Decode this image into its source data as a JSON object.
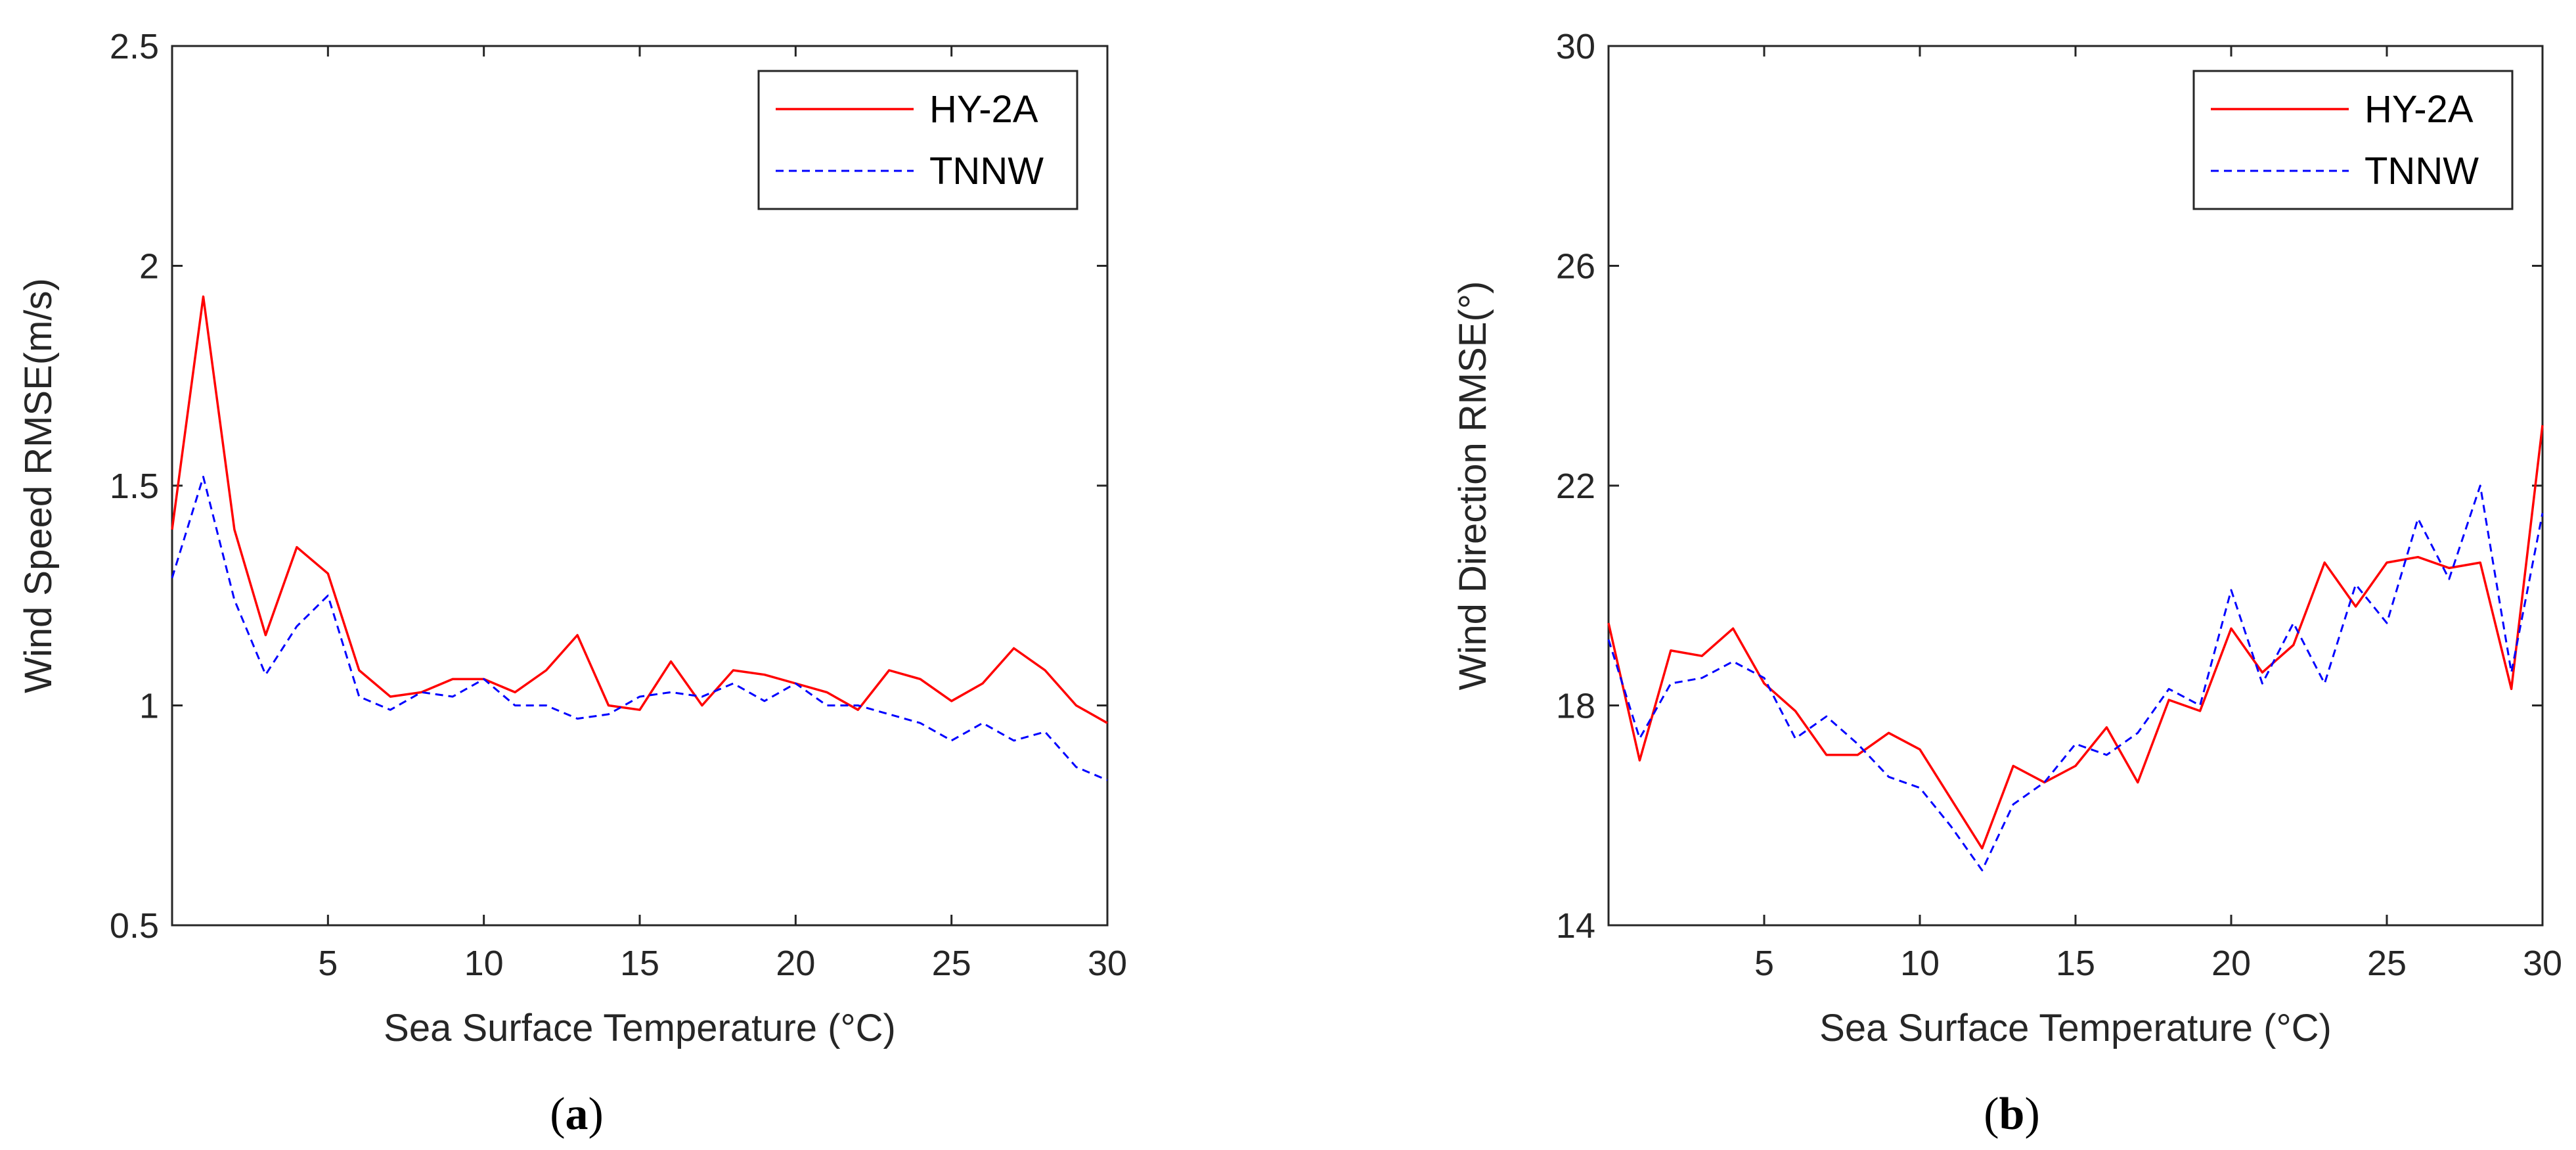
{
  "chart_data": [
    {
      "type": "line",
      "panel": "a",
      "panel_open": "(",
      "panel_close": ")",
      "title": "",
      "xlabel": "Sea Surface Temperature (°C)",
      "ylabel": "Wind Speed RMSE(m/s)",
      "xlim": [
        0,
        30
      ],
      "ylim": [
        0.5,
        2.5
      ],
      "xticks": [
        5,
        10,
        15,
        20,
        25,
        30
      ],
      "xtick_labels": [
        "5",
        "10",
        "15",
        "20",
        "25",
        "30"
      ],
      "yticks": [
        0.5,
        1,
        1.5,
        2,
        2.5
      ],
      "ytick_labels": [
        "0.5",
        "1",
        "1.5",
        "2",
        "2.5"
      ],
      "legend_position": "top-right",
      "grid": false,
      "x": [
        0,
        1,
        2,
        3,
        4,
        5,
        6,
        7,
        8,
        9,
        10,
        11,
        12,
        13,
        14,
        15,
        16,
        17,
        18,
        19,
        20,
        21,
        22,
        23,
        24,
        25,
        26,
        27,
        28,
        29,
        30
      ],
      "series": [
        {
          "name": "HY-2A",
          "color": "#ff0000",
          "style": "solid",
          "values": [
            1.4,
            1.93,
            1.4,
            1.16,
            1.36,
            1.3,
            1.08,
            1.02,
            1.03,
            1.06,
            1.06,
            1.03,
            1.08,
            1.16,
            1.0,
            0.99,
            1.1,
            1.0,
            1.08,
            1.07,
            1.05,
            1.03,
            0.99,
            1.08,
            1.06,
            1.01,
            1.05,
            1.13,
            1.08,
            1.0,
            0.96
          ]
        },
        {
          "name": "TNNW",
          "color": "#0000ff",
          "style": "dashed",
          "values": [
            1.29,
            1.52,
            1.24,
            1.07,
            1.18,
            1.25,
            1.02,
            0.99,
            1.03,
            1.02,
            1.06,
            1.0,
            1.0,
            0.97,
            0.98,
            1.02,
            1.03,
            1.02,
            1.05,
            1.01,
            1.05,
            1.0,
            1.0,
            0.98,
            0.96,
            0.92,
            0.96,
            0.92,
            0.94,
            0.86,
            0.83
          ]
        }
      ]
    },
    {
      "type": "line",
      "panel": "b",
      "panel_open": "(",
      "panel_close": ")",
      "title": "",
      "xlabel": "Sea Surface Temperature (°C)",
      "ylabel": "Wind Direction RMSE(°)",
      "xlim": [
        0,
        30
      ],
      "ylim": [
        14,
        30
      ],
      "xticks": [
        5,
        10,
        15,
        20,
        25,
        30
      ],
      "xtick_labels": [
        "5",
        "10",
        "15",
        "20",
        "25",
        "30"
      ],
      "yticks": [
        14,
        18,
        22,
        26,
        30
      ],
      "ytick_labels": [
        "14",
        "18",
        "22",
        "26",
        "30"
      ],
      "legend_position": "top-right",
      "grid": false,
      "x": [
        0,
        1,
        2,
        3,
        4,
        5,
        6,
        7,
        8,
        9,
        10,
        11,
        12,
        13,
        14,
        15,
        16,
        17,
        18,
        19,
        20,
        21,
        22,
        23,
        24,
        25,
        26,
        27,
        28,
        29,
        30
      ],
      "series": [
        {
          "name": "HY-2A",
          "color": "#ff0000",
          "style": "solid",
          "values": [
            19.5,
            17.0,
            19.0,
            18.9,
            19.4,
            18.4,
            17.9,
            17.1,
            17.1,
            17.5,
            17.2,
            16.3,
            15.4,
            16.9,
            16.6,
            16.9,
            17.6,
            16.6,
            18.1,
            17.9,
            19.4,
            18.6,
            19.1,
            20.6,
            19.8,
            20.6,
            20.7,
            20.5,
            20.6,
            18.3,
            23.1
          ]
        },
        {
          "name": "TNNW",
          "color": "#0000ff",
          "style": "dashed",
          "values": [
            19.2,
            17.4,
            18.4,
            18.5,
            18.8,
            18.5,
            17.4,
            17.8,
            17.3,
            16.7,
            16.5,
            15.8,
            15.0,
            16.2,
            16.6,
            17.3,
            17.1,
            17.5,
            18.3,
            18.0,
            20.1,
            18.4,
            19.5,
            18.4,
            20.2,
            19.5,
            21.4,
            20.3,
            22.0,
            18.6,
            21.5
          ]
        }
      ]
    }
  ]
}
